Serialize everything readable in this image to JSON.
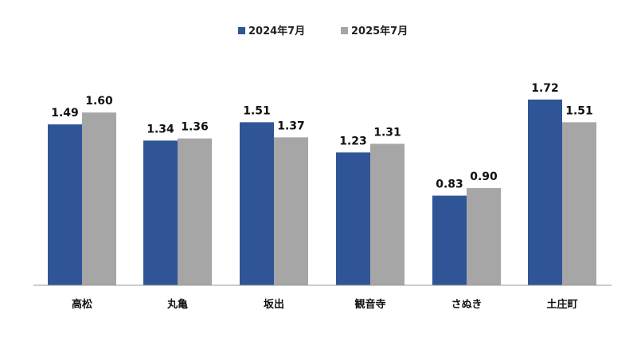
{
  "chart_data": {
    "type": "bar",
    "categories": [
      "高松",
      "丸亀",
      "坂出",
      "観音寺",
      "さぬき",
      "土庄町"
    ],
    "series": [
      {
        "name": "2024年7月",
        "values": [
          1.49,
          1.34,
          1.51,
          1.23,
          0.83,
          1.72
        ],
        "color": "#2f5597"
      },
      {
        "name": "2025年7月",
        "values": [
          1.6,
          1.36,
          1.37,
          1.31,
          0.9,
          1.51
        ],
        "color": "#a6a6a6"
      }
    ],
    "data_labels": [
      [
        "1.49",
        "1.34",
        "1.51",
        "1.23",
        "0.83",
        "1.72"
      ],
      [
        "1.60",
        "1.36",
        "1.37",
        "1.31",
        "0.90",
        "1.51"
      ]
    ],
    "ylim": [
      0,
      2.0
    ],
    "legend_position": "top-center",
    "grid": false,
    "axis_color": "#999999"
  }
}
